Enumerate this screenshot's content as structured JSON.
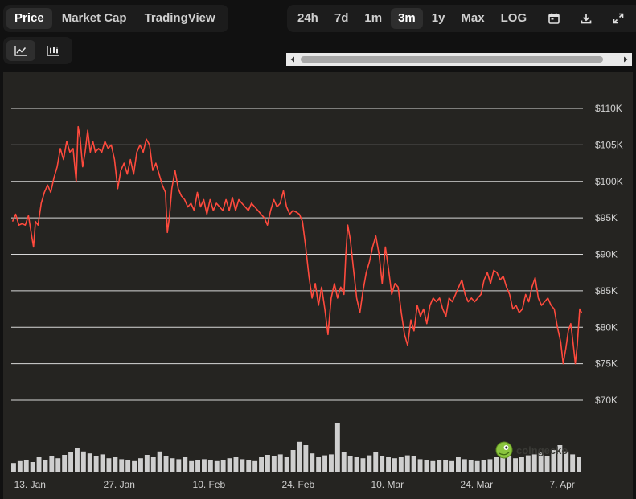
{
  "tabs": [
    {
      "label": "Price",
      "active": true
    },
    {
      "label": "Market Cap",
      "active": false
    },
    {
      "label": "TradingView",
      "active": false
    }
  ],
  "ranges": [
    {
      "label": "24h",
      "active": false
    },
    {
      "label": "7d",
      "active": false
    },
    {
      "label": "1m",
      "active": false
    },
    {
      "label": "3m",
      "active": true
    },
    {
      "label": "1y",
      "active": false
    },
    {
      "label": "Max",
      "active": false
    },
    {
      "label": "LOG",
      "active": false
    }
  ],
  "icons": {
    "calendar": "calendar-icon",
    "download": "download-icon",
    "expand": "expand-icon",
    "line_chart": "line-chart-icon",
    "candle_chart": "candlestick-chart-icon"
  },
  "watermark": {
    "text": "coingecko"
  },
  "colors": {
    "price_line": "#ff4a3d",
    "grid": "#d8d8d8",
    "volume": "#cfcfcf",
    "panel": "#252421"
  },
  "chart_data": {
    "type": "line",
    "ylim": [
      70000,
      110000
    ],
    "y_ticks": [
      {
        "value": 110000,
        "label": "$110K"
      },
      {
        "value": 105000,
        "label": "$105K"
      },
      {
        "value": 100000,
        "label": "$100K"
      },
      {
        "value": 95000,
        "label": "$95K"
      },
      {
        "value": 90000,
        "label": "$90K"
      },
      {
        "value": 85000,
        "label": "$85K"
      },
      {
        "value": 80000,
        "label": "$80K"
      },
      {
        "value": 75000,
        "label": "$75K"
      },
      {
        "value": 70000,
        "label": "$70K"
      }
    ],
    "x_ticks": [
      {
        "day": 0,
        "label": "13. Jan"
      },
      {
        "day": 14,
        "label": "27. Jan"
      },
      {
        "day": 28,
        "label": "10. Feb"
      },
      {
        "day": 42,
        "label": "24. Feb"
      },
      {
        "day": 56,
        "label": "10. Mar"
      },
      {
        "day": 70,
        "label": "24. Mar"
      },
      {
        "day": 84,
        "label": "7. Apr"
      }
    ],
    "x_range": [
      -0.2,
      89.5
    ],
    "grid": true,
    "legend": "none",
    "series": [
      {
        "values": [
          [
            0,
            94500
          ],
          [
            0.5,
            95500
          ],
          [
            1,
            94000
          ],
          [
            1.5,
            94200
          ],
          [
            2,
            94000
          ],
          [
            2.5,
            95300
          ],
          [
            3,
            92500
          ],
          [
            3.3,
            91000
          ],
          [
            3.6,
            94500
          ],
          [
            4,
            94000
          ],
          [
            4.5,
            97000
          ],
          [
            5,
            98500
          ],
          [
            5.5,
            99500
          ],
          [
            6,
            98500
          ],
          [
            6.5,
            100500
          ],
          [
            7,
            102000
          ],
          [
            7.5,
            104500
          ],
          [
            8,
            103000
          ],
          [
            8.5,
            105500
          ],
          [
            9,
            104000
          ],
          [
            9.5,
            104500
          ],
          [
            10,
            100000
          ],
          [
            10.3,
            107500
          ],
          [
            10.6,
            106000
          ],
          [
            11,
            102000
          ],
          [
            11.4,
            104000
          ],
          [
            11.8,
            107000
          ],
          [
            12.2,
            104000
          ],
          [
            12.6,
            105500
          ],
          [
            13,
            104000
          ],
          [
            13.5,
            104500
          ],
          [
            14,
            104000
          ],
          [
            14.5,
            105500
          ],
          [
            15,
            104500
          ],
          [
            15.5,
            105000
          ],
          [
            16,
            103000
          ],
          [
            16.5,
            99000
          ],
          [
            17,
            101500
          ],
          [
            17.5,
            102500
          ],
          [
            18,
            101000
          ],
          [
            18.5,
            103000
          ],
          [
            19,
            101000
          ],
          [
            19.5,
            104000
          ],
          [
            20,
            105000
          ],
          [
            20.5,
            104000
          ],
          [
            21,
            105800
          ],
          [
            21.5,
            105000
          ],
          [
            22,
            101500
          ],
          [
            22.5,
            102500
          ],
          [
            23,
            101000
          ],
          [
            23.5,
            99500
          ],
          [
            24,
            98500
          ],
          [
            24.3,
            93000
          ],
          [
            24.6,
            95000
          ],
          [
            25,
            99000
          ],
          [
            25.5,
            101500
          ],
          [
            26,
            99000
          ],
          [
            26.5,
            98000
          ],
          [
            27,
            97500
          ],
          [
            27.5,
            96500
          ],
          [
            28,
            97000
          ],
          [
            28.5,
            96000
          ],
          [
            29,
            98500
          ],
          [
            29.5,
            96500
          ],
          [
            30,
            97500
          ],
          [
            30.5,
            95500
          ],
          [
            31,
            97500
          ],
          [
            31.5,
            96000
          ],
          [
            32,
            97000
          ],
          [
            32.5,
            96500
          ],
          [
            33,
            96000
          ],
          [
            33.5,
            97500
          ],
          [
            34,
            96000
          ],
          [
            34.5,
            97800
          ],
          [
            35,
            96000
          ],
          [
            35.5,
            97500
          ],
          [
            36,
            97000
          ],
          [
            36.5,
            96500
          ],
          [
            37,
            96000
          ],
          [
            37.5,
            97000
          ],
          [
            38,
            96500
          ],
          [
            38.5,
            96000
          ],
          [
            39,
            95500
          ],
          [
            39.5,
            95000
          ],
          [
            40,
            94000
          ],
          [
            40.5,
            96000
          ],
          [
            41,
            97500
          ],
          [
            41.5,
            96500
          ],
          [
            42,
            97000
          ],
          [
            42.5,
            98700
          ],
          [
            43,
            96500
          ],
          [
            43.5,
            95500
          ],
          [
            44,
            96000
          ],
          [
            44.5,
            95800
          ],
          [
            45,
            95500
          ],
          [
            45.5,
            94500
          ],
          [
            46,
            91000
          ],
          [
            46.5,
            87000
          ],
          [
            47,
            84000
          ],
          [
            47.5,
            86000
          ],
          [
            48,
            83000
          ],
          [
            48.5,
            85500
          ],
          [
            49,
            82500
          ],
          [
            49.5,
            79000
          ],
          [
            50,
            84000
          ],
          [
            50.5,
            86000
          ],
          [
            51,
            84000
          ],
          [
            51.5,
            85500
          ],
          [
            52,
            84500
          ],
          [
            52.3,
            90000
          ],
          [
            52.6,
            94000
          ],
          [
            53,
            92000
          ],
          [
            53.5,
            88000
          ],
          [
            54,
            84000
          ],
          [
            54.5,
            82000
          ],
          [
            55,
            85000
          ],
          [
            55.5,
            87500
          ],
          [
            56,
            89000
          ],
          [
            56.5,
            91000
          ],
          [
            57,
            92500
          ],
          [
            57.5,
            90000
          ],
          [
            58,
            86000
          ],
          [
            58.5,
            91000
          ],
          [
            59,
            88000
          ],
          [
            59.5,
            84500
          ],
          [
            60,
            86000
          ],
          [
            60.5,
            85500
          ],
          [
            61,
            82000
          ],
          [
            61.5,
            79000
          ],
          [
            62,
            77500
          ],
          [
            62.5,
            81000
          ],
          [
            63,
            79500
          ],
          [
            63.5,
            83000
          ],
          [
            64,
            81500
          ],
          [
            64.5,
            82500
          ],
          [
            65,
            80500
          ],
          [
            65.5,
            83000
          ],
          [
            66,
            84000
          ],
          [
            66.5,
            83500
          ],
          [
            67,
            84000
          ],
          [
            67.5,
            82500
          ],
          [
            68,
            81500
          ],
          [
            68.5,
            84000
          ],
          [
            69,
            83500
          ],
          [
            69.5,
            84500
          ],
          [
            70,
            85500
          ],
          [
            70.5,
            86500
          ],
          [
            71,
            84500
          ],
          [
            71.5,
            83500
          ],
          [
            72,
            84000
          ],
          [
            72.5,
            83500
          ],
          [
            73,
            84000
          ],
          [
            73.5,
            84500
          ],
          [
            74,
            86500
          ],
          [
            74.5,
            87500
          ],
          [
            75,
            86000
          ],
          [
            75.5,
            87800
          ],
          [
            76,
            87500
          ],
          [
            76.5,
            86500
          ],
          [
            77,
            87000
          ],
          [
            77.5,
            85500
          ],
          [
            78,
            84500
          ],
          [
            78.5,
            82500
          ],
          [
            79,
            83000
          ],
          [
            79.5,
            82000
          ],
          [
            80,
            82500
          ],
          [
            80.5,
            84500
          ],
          [
            81,
            83500
          ],
          [
            81.5,
            85500
          ],
          [
            82,
            86800
          ],
          [
            82.5,
            84000
          ],
          [
            83,
            83000
          ],
          [
            83.5,
            83500
          ],
          [
            84,
            84000
          ],
          [
            84.5,
            83000
          ],
          [
            85,
            82500
          ],
          [
            85.5,
            80000
          ],
          [
            86,
            78000
          ],
          [
            86.4,
            75000
          ],
          [
            86.8,
            77000
          ],
          [
            87.2,
            79500
          ],
          [
            87.6,
            80500
          ],
          [
            88,
            77500
          ],
          [
            88.3,
            75000
          ],
          [
            88.6,
            77500
          ],
          [
            89,
            82500
          ],
          [
            89.3,
            82000
          ]
        ]
      }
    ],
    "volume": [
      0.18,
      0.22,
      0.25,
      0.2,
      0.3,
      0.24,
      0.32,
      0.28,
      0.35,
      0.4,
      0.5,
      0.42,
      0.38,
      0.33,
      0.36,
      0.28,
      0.3,
      0.26,
      0.24,
      0.22,
      0.28,
      0.35,
      0.3,
      0.42,
      0.32,
      0.28,
      0.26,
      0.3,
      0.22,
      0.24,
      0.26,
      0.25,
      0.22,
      0.24,
      0.28,
      0.3,
      0.26,
      0.24,
      0.22,
      0.3,
      0.35,
      0.32,
      0.36,
      0.3,
      0.45,
      0.62,
      0.55,
      0.38,
      0.3,
      0.34,
      0.36,
      1.0,
      0.4,
      0.32,
      0.3,
      0.28,
      0.34,
      0.4,
      0.32,
      0.3,
      0.28,
      0.3,
      0.34,
      0.32,
      0.26,
      0.24,
      0.22,
      0.25,
      0.24,
      0.22,
      0.3,
      0.26,
      0.24,
      0.22,
      0.24,
      0.26,
      0.3,
      0.34,
      0.32,
      0.28,
      0.3,
      0.34,
      0.36,
      0.4,
      0.32,
      0.45,
      0.55,
      0.42,
      0.36,
      0.3
    ]
  }
}
